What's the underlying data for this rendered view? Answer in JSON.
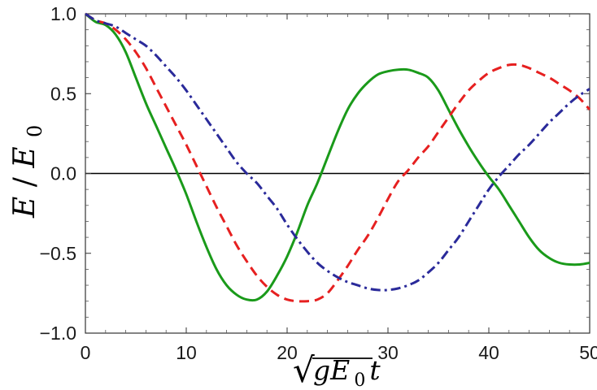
{
  "chart_data": {
    "type": "line",
    "xlim": [
      0,
      50
    ],
    "ylim": [
      -1.0,
      1.0
    ],
    "x_ticks": [
      {
        "value": 0,
        "label": "0"
      },
      {
        "value": 10,
        "label": "10"
      },
      {
        "value": 20,
        "label": "20"
      },
      {
        "value": 30,
        "label": "30"
      },
      {
        "value": 40,
        "label": "40"
      },
      {
        "value": 50,
        "label": "50"
      }
    ],
    "y_ticks": [
      {
        "value": 1.0,
        "label": "1.0"
      },
      {
        "value": 0.5,
        "label": "0.5"
      },
      {
        "value": 0.0,
        "label": "0.0"
      },
      {
        "value": -0.5,
        "label": "−0.5"
      },
      {
        "value": -1.0,
        "label": "−1.0"
      }
    ],
    "xlabel": {
      "radical_symbol": "√",
      "radicand": "gE",
      "subscript": "0",
      "suffix": "t"
    },
    "ylabel": {
      "numerator": "E",
      "slash": "/",
      "base": "E",
      "subscript": "0"
    },
    "grid": false,
    "zero_line": true,
    "series": [
      {
        "style": "solid",
        "color": "#1a9a1a",
        "x": [
          0,
          1,
          2,
          3,
          4,
          5,
          6,
          7,
          8,
          9,
          10,
          11,
          12,
          13,
          14,
          15,
          16,
          17,
          18,
          19,
          20,
          21,
          22,
          23,
          24,
          25,
          26,
          27,
          28,
          29,
          30,
          31,
          32,
          33,
          34,
          35,
          36,
          37,
          38,
          39,
          40,
          41,
          42,
          43,
          44,
          45,
          46,
          47,
          48,
          49,
          50
        ],
        "y": [
          1.0,
          0.95,
          0.93,
          0.87,
          0.76,
          0.6,
          0.44,
          0.3,
          0.16,
          0.02,
          -0.13,
          -0.3,
          -0.46,
          -0.6,
          -0.7,
          -0.76,
          -0.79,
          -0.79,
          -0.74,
          -0.64,
          -0.52,
          -0.37,
          -0.2,
          -0.06,
          0.1,
          0.26,
          0.4,
          0.5,
          0.57,
          0.62,
          0.64,
          0.65,
          0.65,
          0.63,
          0.6,
          0.52,
          0.4,
          0.28,
          0.17,
          0.07,
          -0.02,
          -0.1,
          -0.2,
          -0.3,
          -0.4,
          -0.48,
          -0.53,
          -0.56,
          -0.57,
          -0.57,
          -0.56
        ]
      },
      {
        "style": "dashed",
        "color": "#e62020",
        "x": [
          0,
          1,
          2,
          3,
          4,
          5,
          6,
          7,
          8,
          9,
          10,
          11,
          12,
          13,
          14,
          15,
          16,
          17,
          18,
          19,
          20,
          21,
          22,
          23,
          24,
          25,
          26,
          27,
          28,
          29,
          30,
          31,
          32,
          33,
          34,
          35,
          36,
          37,
          38,
          39,
          40,
          41,
          42,
          43,
          44,
          45,
          46,
          47,
          48,
          49,
          50
        ],
        "y": [
          1.0,
          0.96,
          0.94,
          0.9,
          0.84,
          0.76,
          0.66,
          0.54,
          0.42,
          0.3,
          0.18,
          0.05,
          -0.08,
          -0.21,
          -0.33,
          -0.45,
          -0.55,
          -0.64,
          -0.71,
          -0.76,
          -0.79,
          -0.8,
          -0.8,
          -0.79,
          -0.75,
          -0.67,
          -0.58,
          -0.48,
          -0.39,
          -0.28,
          -0.16,
          -0.05,
          0.02,
          0.1,
          0.17,
          0.26,
          0.35,
          0.44,
          0.52,
          0.58,
          0.63,
          0.66,
          0.68,
          0.68,
          0.66,
          0.63,
          0.6,
          0.56,
          0.52,
          0.47,
          0.4
        ]
      },
      {
        "style": "dashdot",
        "color": "#2a2a9a",
        "x": [
          0,
          1,
          2,
          3,
          4,
          5,
          6,
          7,
          8,
          9,
          10,
          11,
          12,
          13,
          14,
          15,
          16,
          17,
          18,
          19,
          20,
          21,
          22,
          23,
          24,
          25,
          26,
          27,
          28,
          29,
          30,
          31,
          32,
          33,
          34,
          35,
          36,
          37,
          38,
          39,
          40,
          41,
          42,
          43,
          44,
          45,
          46,
          47,
          48,
          49,
          50
        ],
        "y": [
          1.0,
          0.96,
          0.94,
          0.92,
          0.88,
          0.84,
          0.8,
          0.74,
          0.67,
          0.6,
          0.52,
          0.43,
          0.34,
          0.25,
          0.16,
          0.07,
          0.0,
          -0.06,
          -0.14,
          -0.22,
          -0.32,
          -0.41,
          -0.49,
          -0.56,
          -0.61,
          -0.65,
          -0.68,
          -0.7,
          -0.72,
          -0.73,
          -0.73,
          -0.72,
          -0.7,
          -0.67,
          -0.62,
          -0.56,
          -0.48,
          -0.4,
          -0.3,
          -0.2,
          -0.1,
          -0.02,
          0.05,
          0.12,
          0.18,
          0.25,
          0.32,
          0.38,
          0.44,
          0.49,
          0.53
        ]
      }
    ]
  }
}
